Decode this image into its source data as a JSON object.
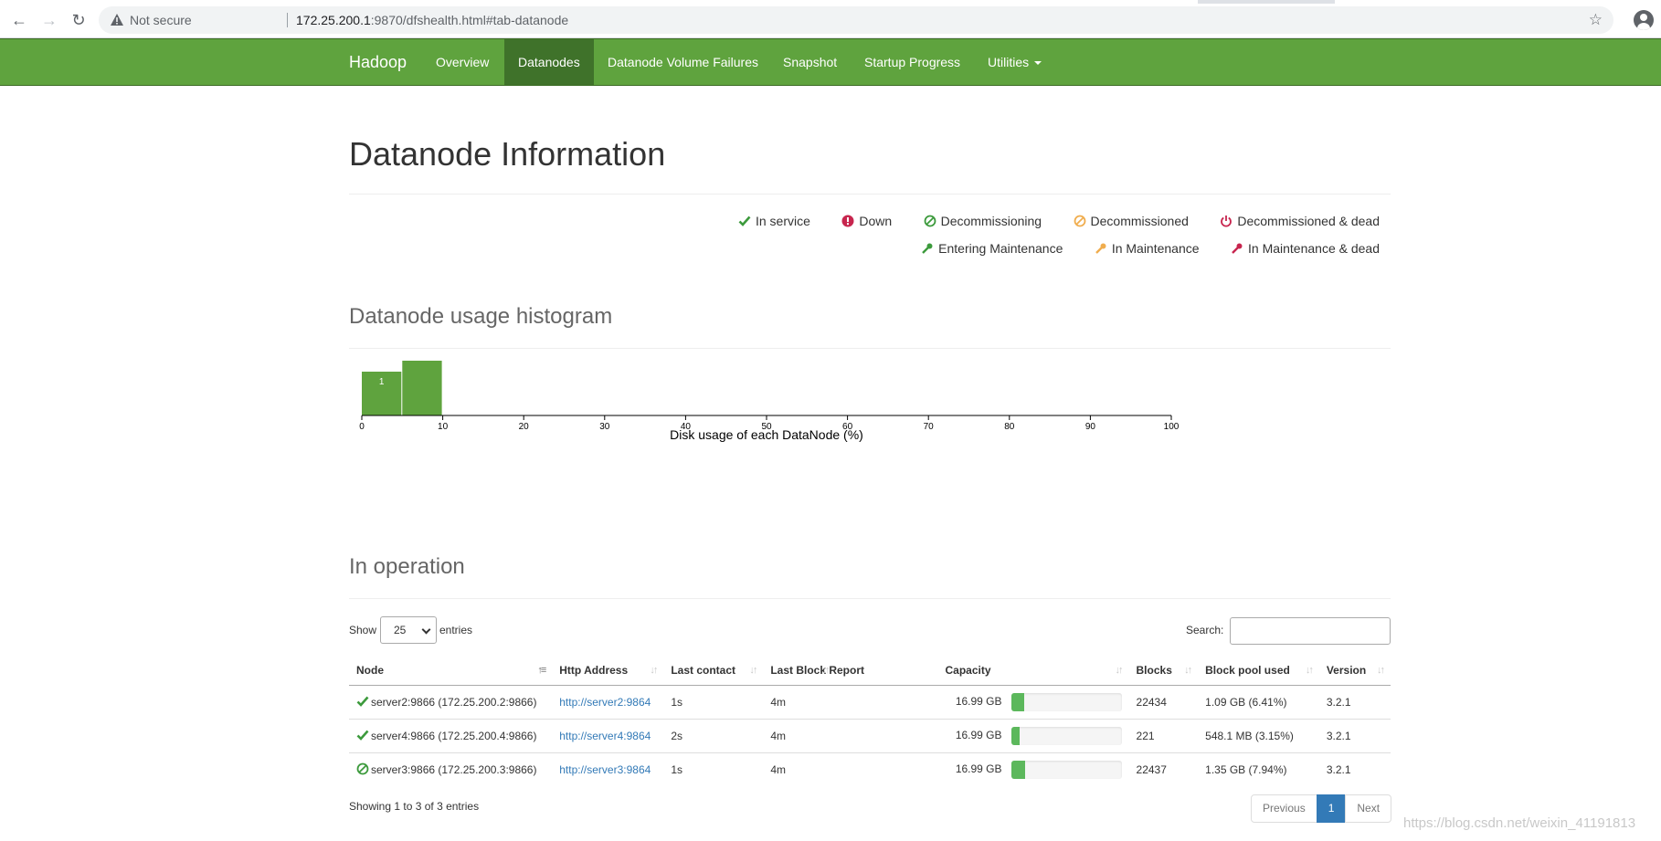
{
  "browser": {
    "security_label": "Not secure",
    "url_host": "172.25.200.1",
    "url_rest": ":9870/dfshealth.html#tab-datanode"
  },
  "navbar": {
    "brand": "Hadoop",
    "items": [
      "Overview",
      "Datanodes",
      "Datanode Volume Failures",
      "Snapshot",
      "Startup Progress",
      "Utilities"
    ],
    "active": "Datanodes",
    "color": "#5fa33e",
    "active_color": "#3f722a"
  },
  "page": {
    "title": "Datanode Information"
  },
  "legend": {
    "row1": [
      {
        "label": "In service",
        "icon": "check-icon",
        "color": "#3c9a3c"
      },
      {
        "label": "Down",
        "icon": "exclamation-circle-icon",
        "color": "#c7254e"
      },
      {
        "label": "Decommissioning",
        "icon": "ban-icon",
        "color": "#3c9a3c"
      },
      {
        "label": "Decommissioned",
        "icon": "ban-icon",
        "color": "#f0ad4e"
      },
      {
        "label": "Decommissioned & dead",
        "icon": "power-icon",
        "color": "#c7254e"
      }
    ],
    "row2": [
      {
        "label": "Entering Maintenance",
        "icon": "wrench-icon",
        "color": "#3c9a3c"
      },
      {
        "label": "In Maintenance",
        "icon": "wrench-icon",
        "color": "#f0ad4e"
      },
      {
        "label": "In Maintenance & dead",
        "icon": "wrench-icon",
        "color": "#c7254e"
      }
    ]
  },
  "histogram": {
    "title": "Datanode usage histogram"
  },
  "chart_data": {
    "type": "bar",
    "bins": [
      [
        0,
        5
      ],
      [
        5,
        10
      ]
    ],
    "values": [
      1,
      2
    ],
    "x_ticks": [
      0,
      10,
      20,
      30,
      40,
      50,
      60,
      70,
      80,
      90,
      100
    ],
    "xlim": [
      0,
      100
    ],
    "xlabel": "Disk usage of each DataNode (%)",
    "bar_color": "#5fa33e"
  },
  "operation": {
    "title": "In operation",
    "show_label": "Show",
    "entries_label": "entries",
    "page_length": "25",
    "search_label": "Search:",
    "search_value": "",
    "columns": [
      "Node",
      "Http Address",
      "Last contact",
      "Last Block Report",
      "Capacity",
      "Blocks",
      "Block pool used",
      "Version"
    ],
    "rows": [
      {
        "state": "in-service",
        "node": "server2:9866 (172.25.200.2:9866)",
        "http": "http://server2:9864",
        "last_contact": "1s",
        "last_block_report": "4m",
        "capacity": "16.99 GB",
        "used_fraction": 0.12,
        "blocks": "22434",
        "block_pool_used": "1.09 GB (6.41%)",
        "version": "3.2.1"
      },
      {
        "state": "in-service",
        "node": "server4:9866 (172.25.200.4:9866)",
        "http": "http://server4:9864",
        "last_contact": "2s",
        "last_block_report": "4m",
        "capacity": "16.99 GB",
        "used_fraction": 0.08,
        "blocks": "221",
        "block_pool_used": "548.1 MB (3.15%)",
        "version": "3.2.1"
      },
      {
        "state": "decommissioning",
        "node": "server3:9866 (172.25.200.3:9866)",
        "http": "http://server3:9864",
        "last_contact": "1s",
        "last_block_report": "4m",
        "capacity": "16.99 GB",
        "used_fraction": 0.13,
        "blocks": "22437",
        "block_pool_used": "1.35 GB (7.94%)",
        "version": "3.2.1"
      }
    ],
    "info": "Showing 1 to 3 of 3 entries",
    "pagination": {
      "previous": "Previous",
      "current": "1",
      "next": "Next"
    }
  },
  "watermark": "https://blog.csdn.net/weixin_41191813"
}
